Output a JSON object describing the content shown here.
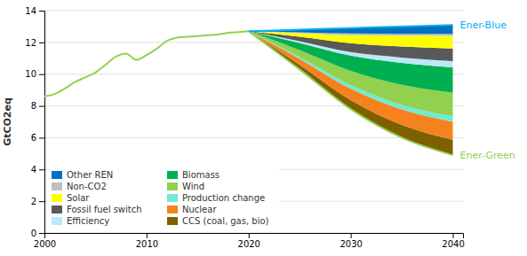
{
  "chart_data": {
    "type": "area",
    "stacked": true,
    "ylabel": "GtCO2eq",
    "xlim": [
      2000,
      2041
    ],
    "xticks": [
      2000,
      2010,
      2020,
      2030,
      2040
    ],
    "ylim": [
      0,
      14
    ],
    "yticks": [
      0,
      2,
      4,
      6,
      8,
      10,
      12,
      14
    ],
    "grid": true,
    "legend": "lower left",
    "series": [
      {
        "type": "line",
        "color": "#92d050",
        "x": [
          2000,
          2001,
          2002,
          2003,
          2004,
          2005,
          2006,
          2007,
          2008,
          2009,
          2010,
          2011,
          2012,
          2013,
          2014,
          2015,
          2016,
          2017,
          2018,
          2019,
          2020
        ],
        "values": [
          8.6,
          8.75,
          9.1,
          9.5,
          9.8,
          10.1,
          10.6,
          11.1,
          11.3,
          10.9,
          11.2,
          11.6,
          12.1,
          12.3,
          12.35,
          12.4,
          12.45,
          12.5,
          12.6,
          12.65,
          12.7
        ]
      },
      {
        "name": "Ener-Green",
        "type": "line",
        "color": "#92d050",
        "x": [
          2020,
          2025,
          2030,
          2035,
          2040
        ],
        "values": [
          12.7,
          10.3,
          7.8,
          6.0,
          4.9
        ]
      },
      {
        "name": "CCS (coal, gas, bio)",
        "type": "area",
        "color": "#7f6000",
        "x": [
          2020,
          2025,
          2030,
          2035,
          2040
        ],
        "values": [
          0.0,
          0.277778,
          0.56044,
          0.803279,
          0.968056
        ]
      },
      {
        "name": "Nuclear",
        "type": "area",
        "color": "#f6821f",
        "x": [
          2020,
          2025,
          2030,
          2035,
          2040
        ],
        "values": [
          0.0,
          0.388889,
          0.728571,
          0.97541,
          1.138889
        ]
      },
      {
        "name": "Production change",
        "type": "area",
        "color": "#70ead4",
        "x": [
          2020,
          2025,
          2030,
          2035,
          2040
        ],
        "values": [
          0.0,
          0.111111,
          0.224176,
          0.286885,
          0.341667
        ]
      },
      {
        "name": "Wind",
        "type": "area",
        "color": "#92d050",
        "x": [
          2020,
          2025,
          2030,
          2035,
          2040
        ],
        "values": [
          0.0,
          0.444444,
          0.896703,
          1.262295,
          1.480556
        ]
      },
      {
        "name": "Biomass",
        "type": "area",
        "color": "#00b050",
        "x": [
          2020,
          2025,
          2030,
          2035,
          2040
        ],
        "values": [
          0.0,
          0.444444,
          0.952747,
          1.377049,
          1.594444
        ]
      },
      {
        "name": "Efficiency",
        "type": "area",
        "color": "#bde8f5",
        "x": [
          2020,
          2025,
          2030,
          2035,
          2040
        ],
        "values": [
          0.0,
          0.111111,
          0.224176,
          0.344262,
          0.398611
        ]
      },
      {
        "name": "Fossil fuel switch",
        "type": "area",
        "color": "#595959",
        "x": [
          2020,
          2025,
          2030,
          2035,
          2040
        ],
        "values": [
          0.0,
          0.277778,
          0.56044,
          0.688525,
          0.797222
        ]
      },
      {
        "name": "Solar",
        "type": "area",
        "color": "#ffff00",
        "x": [
          2020,
          2025,
          2030,
          2035,
          2040
        ],
        "values": [
          0.0,
          0.222222,
          0.504396,
          0.688525,
          0.797222
        ]
      },
      {
        "name": "Non-CO2",
        "type": "area",
        "color": "#bfbfbf",
        "x": [
          2020,
          2025,
          2030,
          2035,
          2040
        ],
        "values": [
          0.0,
          0.055556,
          0.112088,
          0.114754,
          0.113889
        ]
      },
      {
        "name": "Other REN",
        "type": "area",
        "color": "#0070c0",
        "x": [
          2020,
          2025,
          2030,
          2035,
          2040
        ],
        "values": [
          0.0,
          0.166667,
          0.336264,
          0.459016,
          0.569444
        ]
      },
      {
        "name": "Ener-Blue",
        "type": "line",
        "color": "#00b0f0",
        "x": [
          2020,
          2025,
          2030,
          2035,
          2040
        ],
        "values": [
          12.7,
          12.8,
          12.9,
          13.0,
          13.1
        ]
      }
    ]
  }
}
